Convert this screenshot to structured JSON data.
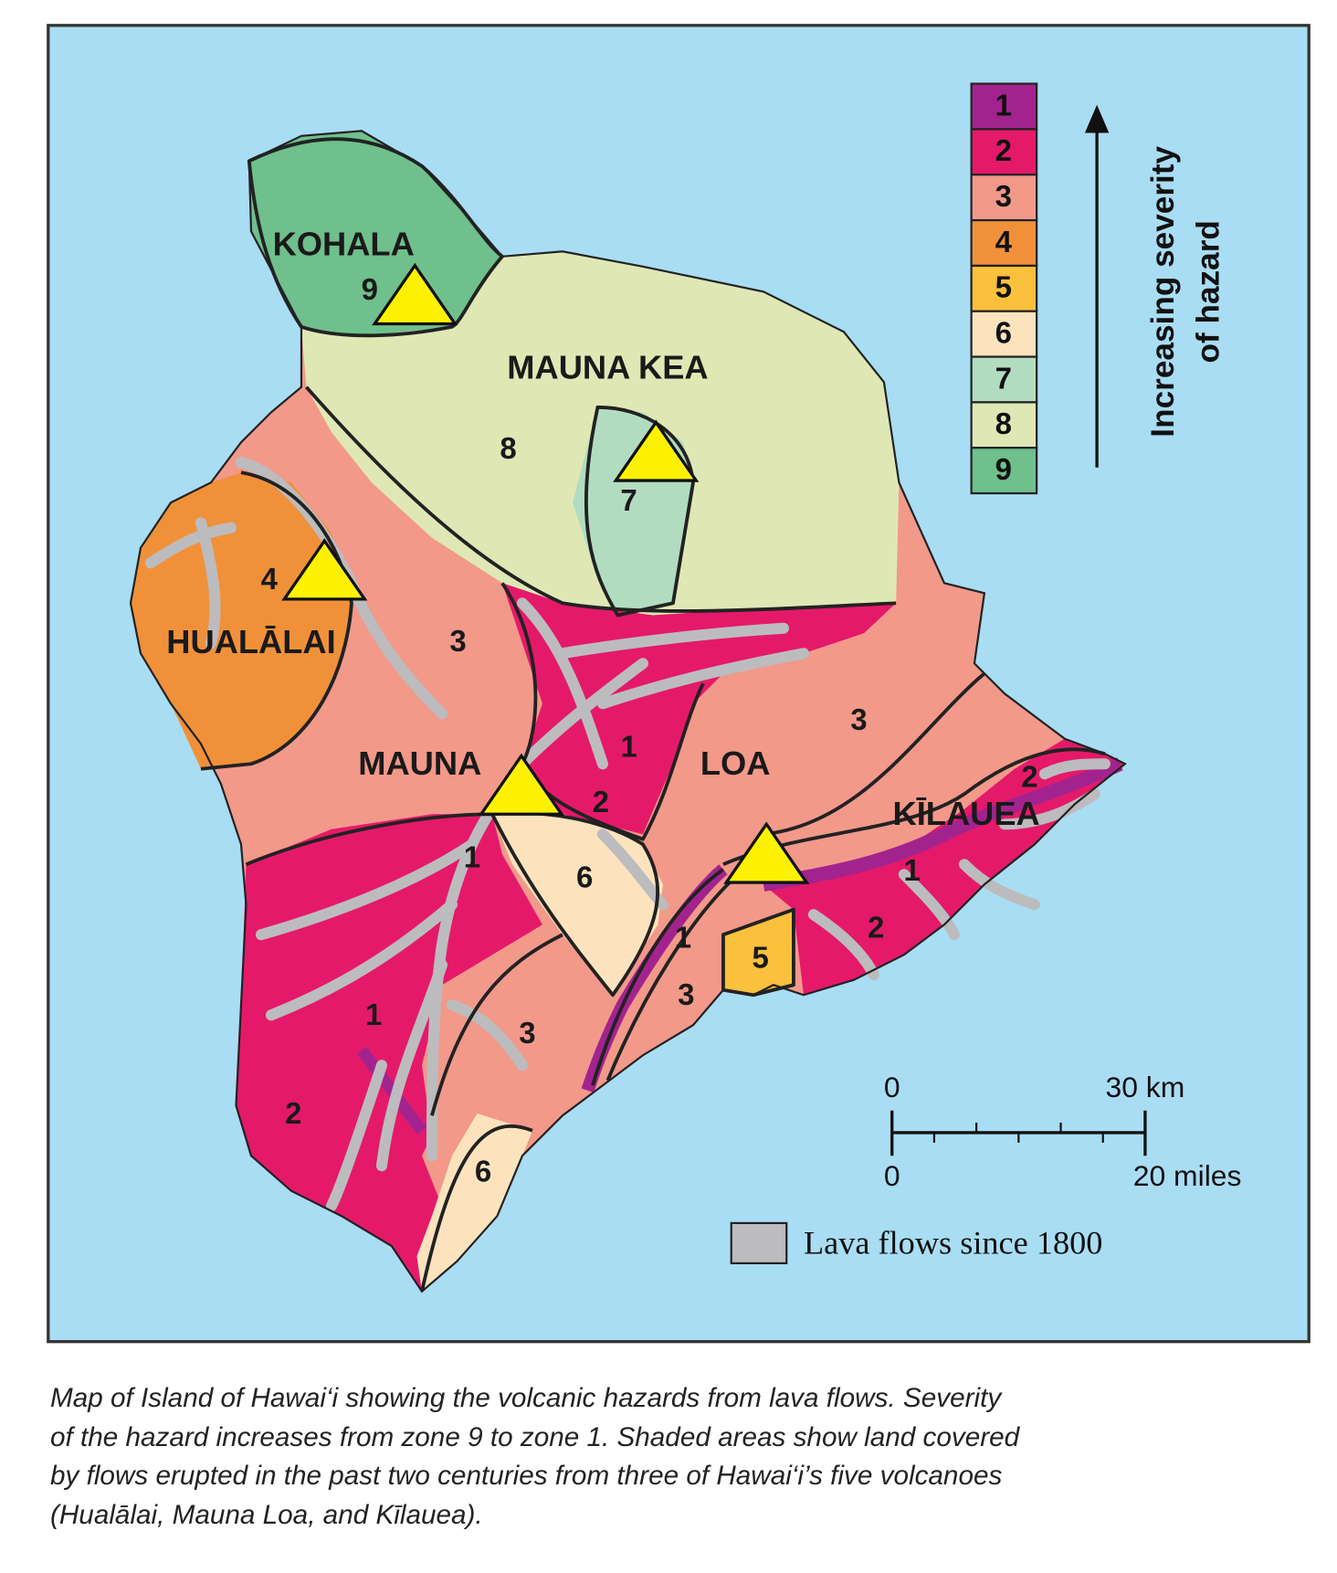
{
  "map": {
    "volcanoes": [
      "KOHALA",
      "MAUNA KEA",
      "HUALĀLAI",
      "MAUNA",
      "LOA",
      "KĪLAUEA"
    ],
    "zone_labels": [
      "9",
      "8",
      "7",
      "4",
      "3",
      "1",
      "3",
      "2",
      "2",
      "1",
      "6",
      "1",
      "1",
      "5",
      "2",
      "3",
      "1",
      "3",
      "2",
      "6"
    ]
  },
  "legend": {
    "zones": [
      {
        "label": "1",
        "color": "#a3238e"
      },
      {
        "label": "2",
        "color": "#e5196a"
      },
      {
        "label": "3",
        "color": "#f2998a"
      },
      {
        "label": "4",
        "color": "#f0913a"
      },
      {
        "label": "5",
        "color": "#fbc03c"
      },
      {
        "label": "6",
        "color": "#fde3bd"
      },
      {
        "label": "7",
        "color": "#b2dcc0"
      },
      {
        "label": "8",
        "color": "#dfe8b5"
      },
      {
        "label": "9",
        "color": "#6fc08c"
      }
    ],
    "arrow_label": [
      "Increasing severity",
      "of hazard"
    ]
  },
  "scale_bar": {
    "km_start": "0",
    "km_end": "30 km",
    "mi_start": "0",
    "mi_end": "20 miles"
  },
  "lava_legend": "Lava flows since 1800",
  "caption": [
    "Map of Island of Hawai‘i showing the volcanic hazards from lava flows. Severity",
    "of the hazard increases from zone 9 to zone 1. Shaded areas show land covered",
    "by flows erupted in the past two centuries from three of Hawai‘i’s five volcanoes",
    "(Hualālai, Mauna Loa, and Kīlauea)."
  ]
}
